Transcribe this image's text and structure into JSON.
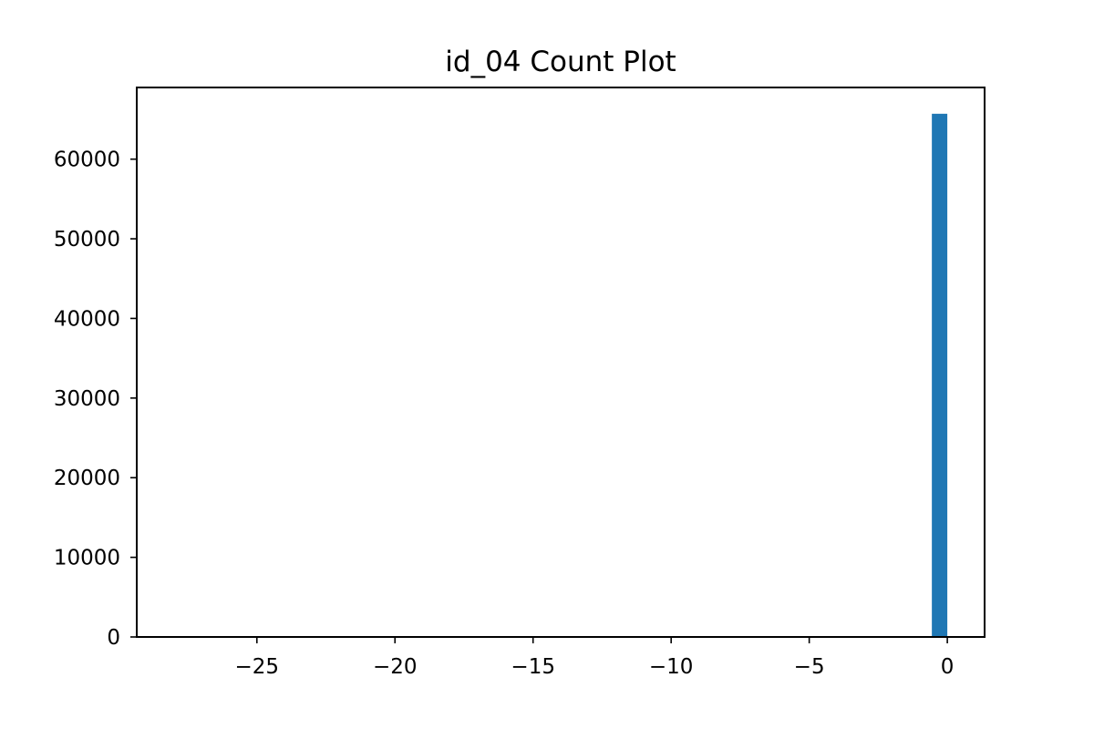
{
  "chart_data": {
    "type": "bar",
    "title": "id_04 Count Plot",
    "xlabel": "",
    "ylabel": "",
    "xlim": [
      -29.35,
      1.35
    ],
    "ylim": [
      0,
      69000
    ],
    "grid": false,
    "xticks": [
      {
        "value": -25,
        "label": "−25"
      },
      {
        "value": -20,
        "label": "−20"
      },
      {
        "value": -15,
        "label": "−15"
      },
      {
        "value": -10,
        "label": "−10"
      },
      {
        "value": -5,
        "label": "−5"
      },
      {
        "value": 0,
        "label": "0"
      }
    ],
    "yticks": [
      {
        "value": 0,
        "label": "0"
      },
      {
        "value": 10000,
        "label": "10000"
      },
      {
        "value": 20000,
        "label": "20000"
      },
      {
        "value": 30000,
        "label": "30000"
      },
      {
        "value": 40000,
        "label": "40000"
      },
      {
        "value": 50000,
        "label": "50000"
      },
      {
        "value": 60000,
        "label": "60000"
      }
    ],
    "bins": [
      {
        "x0": -0.56,
        "x1": 0,
        "count": 65700
      }
    ],
    "colors": {
      "bar": "#1f77b4",
      "axis": "#000000",
      "background": "#ffffff"
    }
  }
}
